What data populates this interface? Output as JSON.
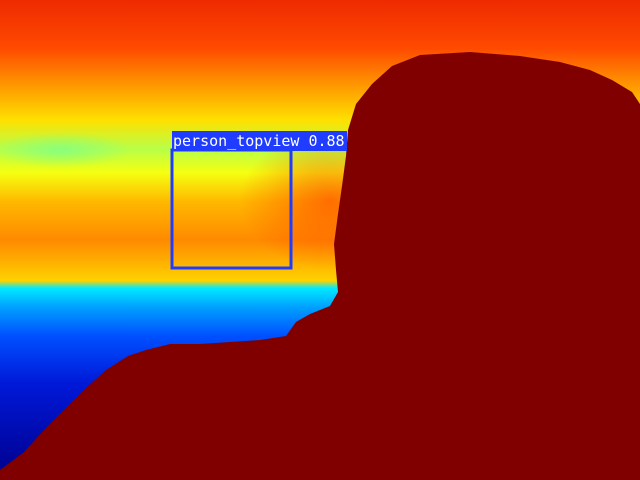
{
  "detection": {
    "class_label": "person_topview",
    "confidence": "0.88",
    "box_color": "#1f3cff"
  },
  "colors": {
    "colormap": "jet",
    "foreground": "#800000"
  }
}
